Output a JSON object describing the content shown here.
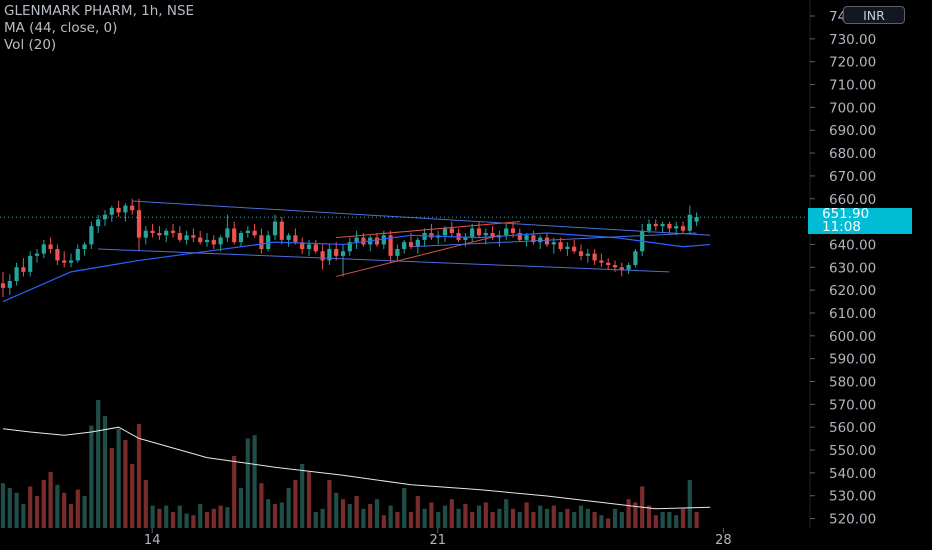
{
  "legend": {
    "title": "GLENMARK PHARM, 1h, NSE",
    "ma": "MA (44, close, 0)",
    "vol": "Vol (20)"
  },
  "currency": "INR",
  "last_price": {
    "value": "651.90",
    "countdown": "11:08"
  },
  "colors": {
    "background": "#000000",
    "up": "#26a69a",
    "down": "#ef5350",
    "up_volume": "#1f4d47",
    "down_volume": "#7a2b2b",
    "ma": "#2962ff",
    "trendline_blue": "#4a6fd8",
    "trendline_red": "#d9534f",
    "price_tag": "#00bcd4",
    "axis_text": "#b2b5be"
  },
  "chart_data": {
    "type": "candlestick",
    "title": "GLENMARK PHARM, 1h, NSE",
    "y_axis": {
      "ticks": [
        "520.00",
        "530.00",
        "540.00",
        "550.00",
        "560.00",
        "570.00",
        "580.00",
        "590.00",
        "600.00",
        "610.00",
        "620.00",
        "630.00",
        "640.00",
        "650.00",
        "660.00",
        "670.00",
        "680.00",
        "690.00",
        "700.00",
        "710.00",
        "720.00",
        "730.00",
        "740.00"
      ],
      "ylim": [
        515,
        742
      ],
      "position": "right"
    },
    "x_axis": {
      "ticks": [
        {
          "label": "14",
          "index": 19
        },
        {
          "label": "21",
          "index": 61
        },
        {
          "label": "28",
          "index": 103
        }
      ]
    },
    "candles": [
      [
        623,
        628,
        617,
        621
      ],
      [
        621,
        627,
        618,
        624
      ],
      [
        624,
        632,
        622,
        630
      ],
      [
        630,
        634,
        626,
        628
      ],
      [
        628,
        637,
        626,
        635
      ],
      [
        635,
        638,
        632,
        636
      ],
      [
        636,
        642,
        634,
        640
      ],
      [
        640,
        643,
        636,
        638
      ],
      [
        638,
        640,
        631,
        633
      ],
      [
        633,
        637,
        630,
        632
      ],
      [
        632,
        636,
        630,
        633
      ],
      [
        633,
        640,
        632,
        638
      ],
      [
        638,
        641,
        635,
        640
      ],
      [
        640,
        650,
        638,
        648
      ],
      [
        648,
        653,
        645,
        651
      ],
      [
        651,
        655,
        648,
        653
      ],
      [
        653,
        657,
        650,
        656
      ],
      [
        656,
        659,
        652,
        654
      ],
      [
        654,
        658,
        650,
        657
      ],
      [
        657,
        660,
        653,
        655
      ],
      [
        655,
        660,
        637,
        643
      ],
      [
        643,
        648,
        640,
        646
      ],
      [
        646,
        649,
        643,
        645
      ],
      [
        645,
        648,
        642,
        644
      ],
      [
        644,
        647,
        641,
        646
      ],
      [
        646,
        649,
        643,
        645
      ],
      [
        645,
        648,
        641,
        642
      ],
      [
        642,
        646,
        640,
        644
      ],
      [
        644,
        647,
        641,
        643
      ],
      [
        643,
        646,
        640,
        641
      ],
      [
        641,
        645,
        639,
        642
      ],
      [
        642,
        644,
        638,
        640
      ],
      [
        640,
        644,
        637,
        643
      ],
      [
        643,
        653,
        641,
        647
      ],
      [
        647,
        650,
        640,
        641
      ],
      [
        641,
        646,
        639,
        645
      ],
      [
        645,
        648,
        643,
        646
      ],
      [
        646,
        649,
        643,
        644
      ],
      [
        644,
        647,
        636,
        638
      ],
      [
        638,
        646,
        637,
        644
      ],
      [
        644,
        653,
        642,
        650
      ],
      [
        650,
        652,
        640,
        642
      ],
      [
        642,
        645,
        639,
        644
      ],
      [
        644,
        647,
        640,
        641
      ],
      [
        641,
        643,
        636,
        638
      ],
      [
        638,
        642,
        635,
        640
      ],
      [
        640,
        642,
        636,
        637
      ],
      [
        637,
        640,
        629,
        633
      ],
      [
        633,
        640,
        631,
        638
      ],
      [
        638,
        641,
        633,
        635
      ],
      [
        635,
        640,
        626,
        637
      ],
      [
        637,
        643,
        635,
        641
      ],
      [
        641,
        646,
        638,
        643
      ],
      [
        643,
        645,
        639,
        640
      ],
      [
        640,
        644,
        637,
        643
      ],
      [
        643,
        645,
        639,
        640
      ],
      [
        640,
        646,
        638,
        644
      ],
      [
        644,
        646,
        632,
        635
      ],
      [
        635,
        640,
        633,
        638
      ],
      [
        638,
        642,
        636,
        641
      ],
      [
        641,
        645,
        638,
        639
      ],
      [
        639,
        643,
        636,
        642
      ],
      [
        642,
        647,
        639,
        645
      ],
      [
        645,
        649,
        642,
        643
      ],
      [
        643,
        646,
        640,
        644
      ],
      [
        644,
        648,
        641,
        647
      ],
      [
        647,
        650,
        643,
        645
      ],
      [
        645,
        647,
        641,
        642
      ],
      [
        642,
        645,
        639,
        643
      ],
      [
        643,
        649,
        641,
        647
      ],
      [
        647,
        650,
        643,
        644
      ],
      [
        644,
        647,
        640,
        645
      ],
      [
        645,
        648,
        642,
        643
      ],
      [
        643,
        646,
        639,
        644
      ],
      [
        644,
        649,
        642,
        647
      ],
      [
        647,
        650,
        643,
        645
      ],
      [
        645,
        647,
        641,
        642
      ],
      [
        642,
        645,
        639,
        644
      ],
      [
        644,
        646,
        640,
        641
      ],
      [
        641,
        644,
        638,
        643
      ],
      [
        643,
        645,
        639,
        640
      ],
      [
        640,
        643,
        636,
        641
      ],
      [
        641,
        643,
        637,
        638
      ],
      [
        638,
        641,
        635,
        639
      ],
      [
        639,
        642,
        636,
        637
      ],
      [
        637,
        640,
        633,
        635
      ],
      [
        635,
        638,
        632,
        636
      ],
      [
        636,
        638,
        631,
        633
      ],
      [
        633,
        636,
        630,
        632
      ],
      [
        632,
        634,
        629,
        631
      ],
      [
        631,
        633,
        628,
        630
      ],
      [
        630,
        632,
        626,
        629
      ],
      [
        629,
        632,
        627,
        631
      ],
      [
        631,
        638,
        630,
        637
      ],
      [
        637,
        649,
        635,
        646
      ],
      [
        646,
        651,
        645,
        649
      ],
      [
        649,
        651,
        646,
        648
      ],
      [
        648,
        650,
        645,
        649
      ],
      [
        649,
        650,
        645,
        647
      ],
      [
        647,
        650,
        644,
        648
      ],
      [
        648,
        650,
        645,
        646
      ],
      [
        646,
        657,
        645,
        653
      ],
      [
        650,
        654,
        648,
        652
      ]
    ],
    "volume_max_units": 100,
    "volumes": [
      [
        28,
        1
      ],
      [
        25,
        1
      ],
      [
        22,
        1
      ],
      [
        15,
        1
      ],
      [
        26,
        0
      ],
      [
        20,
        0
      ],
      [
        30,
        0
      ],
      [
        35,
        0
      ],
      [
        27,
        1
      ],
      [
        22,
        0
      ],
      [
        15,
        0
      ],
      [
        24,
        0
      ],
      [
        20,
        1
      ],
      [
        64,
        1
      ],
      [
        80,
        1
      ],
      [
        70,
        1
      ],
      [
        50,
        0
      ],
      [
        62,
        1
      ],
      [
        55,
        0
      ],
      [
        40,
        0
      ],
      [
        65,
        0
      ],
      [
        30,
        0
      ],
      [
        14,
        1
      ],
      [
        12,
        0
      ],
      [
        14,
        1
      ],
      [
        10,
        0
      ],
      [
        14,
        1
      ],
      [
        9,
        1
      ],
      [
        8,
        0
      ],
      [
        15,
        1
      ],
      [
        10,
        0
      ],
      [
        12,
        0
      ],
      [
        14,
        0
      ],
      [
        13,
        1
      ],
      [
        45,
        0
      ],
      [
        25,
        1
      ],
      [
        56,
        1
      ],
      [
        58,
        1
      ],
      [
        28,
        0
      ],
      [
        18,
        1
      ],
      [
        15,
        0
      ],
      [
        16,
        1
      ],
      [
        25,
        1
      ],
      [
        30,
        0
      ],
      [
        40,
        1
      ],
      [
        35,
        0
      ],
      [
        10,
        1
      ],
      [
        12,
        1
      ],
      [
        30,
        0
      ],
      [
        22,
        1
      ],
      [
        18,
        0
      ],
      [
        15,
        1
      ],
      [
        20,
        0
      ],
      [
        12,
        1
      ],
      [
        15,
        0
      ],
      [
        18,
        1
      ],
      [
        8,
        0
      ],
      [
        14,
        1
      ],
      [
        10,
        0
      ],
      [
        25,
        1
      ],
      [
        10,
        0
      ],
      [
        20,
        0
      ],
      [
        12,
        1
      ],
      [
        16,
        0
      ],
      [
        10,
        1
      ],
      [
        14,
        1
      ],
      [
        18,
        0
      ],
      [
        12,
        1
      ],
      [
        15,
        0
      ],
      [
        10,
        0
      ],
      [
        14,
        1
      ],
      [
        16,
        0
      ],
      [
        10,
        0
      ],
      [
        12,
        1
      ],
      [
        18,
        1
      ],
      [
        12,
        0
      ],
      [
        10,
        1
      ],
      [
        16,
        0
      ],
      [
        10,
        0
      ],
      [
        14,
        1
      ],
      [
        12,
        1
      ],
      [
        14,
        0
      ],
      [
        10,
        1
      ],
      [
        12,
        0
      ],
      [
        10,
        1
      ],
      [
        14,
        1
      ],
      [
        12,
        1
      ],
      [
        10,
        0
      ],
      [
        8,
        1
      ],
      [
        6,
        0
      ],
      [
        12,
        1
      ],
      [
        10,
        1
      ],
      [
        18,
        0
      ],
      [
        16,
        0
      ],
      [
        26,
        0
      ],
      [
        14,
        0
      ],
      [
        8,
        0
      ],
      [
        10,
        1
      ],
      [
        10,
        1
      ],
      [
        8,
        1
      ],
      [
        12,
        0
      ],
      [
        30,
        1
      ],
      [
        10,
        0
      ]
    ],
    "ma_points": [
      [
        0,
        615
      ],
      [
        10,
        628
      ],
      [
        20,
        633
      ],
      [
        30,
        637
      ],
      [
        40,
        641
      ],
      [
        50,
        640
      ],
      [
        60,
        644
      ],
      [
        70,
        643
      ],
      [
        80,
        645
      ],
      [
        90,
        643
      ],
      [
        100,
        639
      ],
      [
        104,
        640
      ]
    ],
    "vol_ma_points": [
      [
        0,
        62
      ],
      [
        4,
        60
      ],
      [
        9,
        58
      ],
      [
        13,
        60
      ],
      [
        17,
        63
      ],
      [
        20,
        56
      ],
      [
        30,
        44
      ],
      [
        40,
        38
      ],
      [
        50,
        33
      ],
      [
        60,
        27
      ],
      [
        70,
        24
      ],
      [
        80,
        20
      ],
      [
        90,
        15
      ],
      [
        96,
        12
      ],
      [
        104,
        13
      ]
    ],
    "trendlines": [
      {
        "color": "blue",
        "from": [
          19,
          659
        ],
        "to": [
          104,
          644
        ]
      },
      {
        "color": "blue",
        "from": [
          14,
          638
        ],
        "to": [
          98,
          628
        ]
      },
      {
        "color": "red",
        "from": [
          49,
          626
        ],
        "to": [
          73,
          644
        ]
      },
      {
        "color": "red",
        "from": [
          49,
          643
        ],
        "to": [
          76,
          650
        ]
      },
      {
        "color": "blue",
        "from": [
          60,
          639
        ],
        "to": [
          102,
          645
        ]
      }
    ],
    "last_value": 651.9
  }
}
